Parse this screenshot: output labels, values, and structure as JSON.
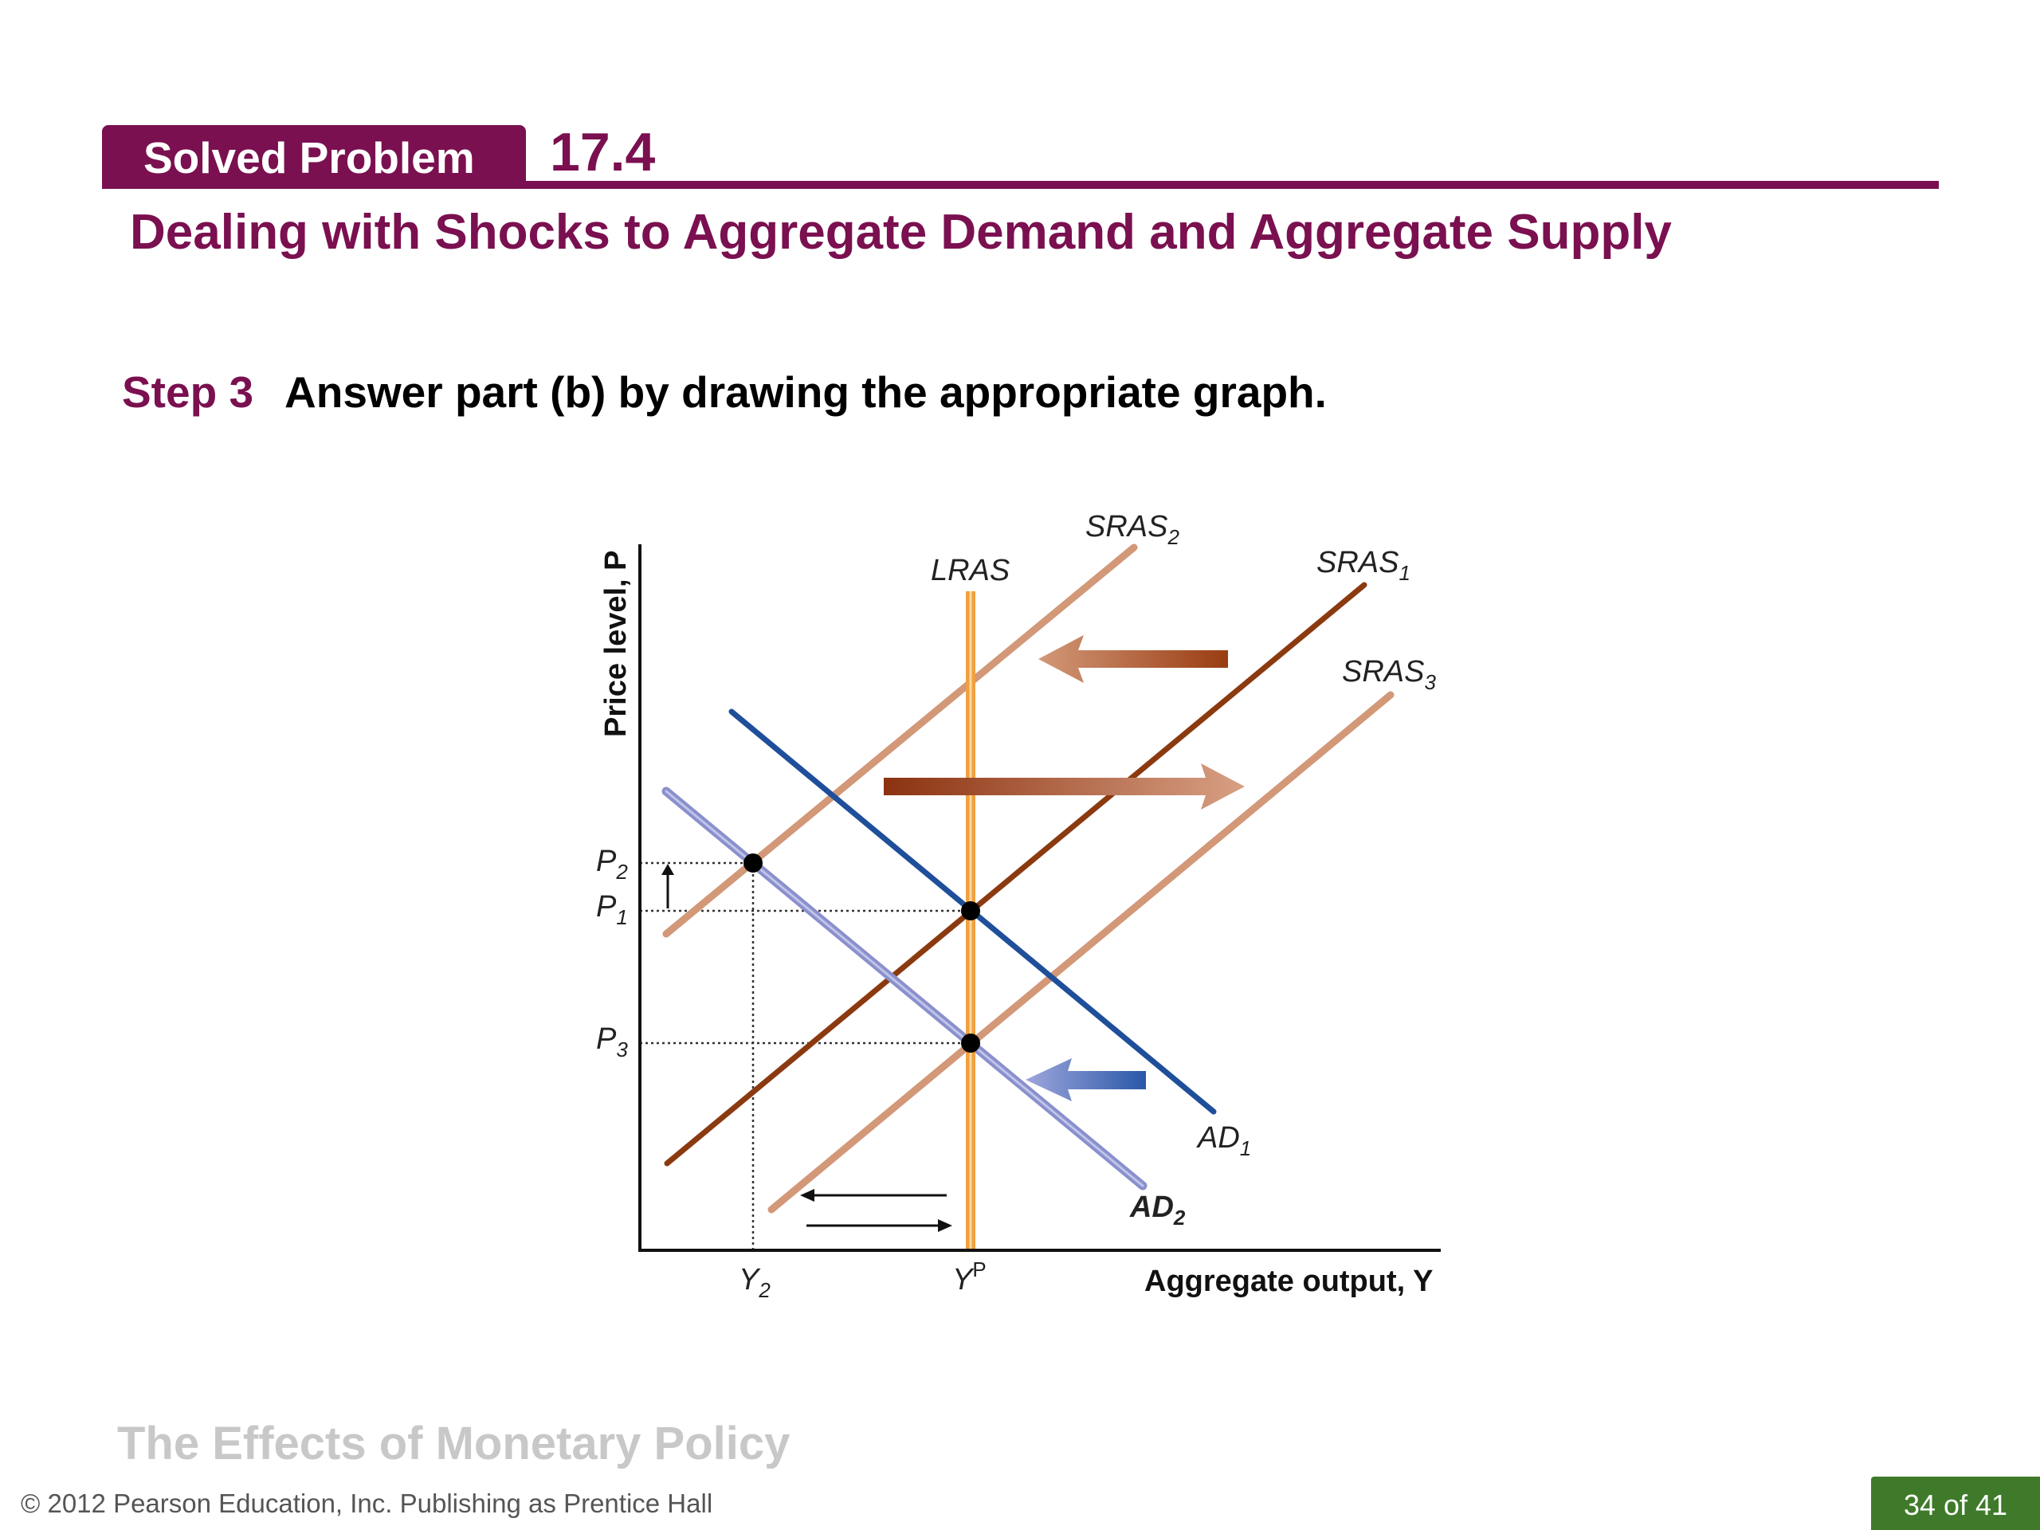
{
  "header": {
    "tab_label": "Solved Problem",
    "number": "17.4",
    "title": "Dealing with Shocks to Aggregate Demand and Aggregate Supply"
  },
  "step": {
    "label": "Step 3",
    "text": "Answer part (b) by drawing the appropriate graph."
  },
  "diagram": {
    "y_axis_label": "Price level, P",
    "x_axis_label": "Aggregate output, Y",
    "curves": {
      "lras": "LRAS",
      "sras1_base": "SRAS",
      "sras1_sub": "1",
      "sras2_base": "SRAS",
      "sras2_sub": "2",
      "sras3_base": "SRAS",
      "sras3_sub": "3",
      "ad1_base": "AD",
      "ad1_sub": "1",
      "ad2_base": "AD",
      "ad2_sub": "2"
    },
    "prices": {
      "p2_base": "P",
      "p2_sub": "2",
      "p1_base": "P",
      "p1_sub": "1",
      "p3_base": "P",
      "p3_sub": "3"
    },
    "outputs": {
      "y2_base": "Y",
      "y2_sub": "2",
      "yp_base": "Y",
      "yp_sup": "P"
    },
    "colors": {
      "lras": "#f0a040",
      "sras1": "#8b3a10",
      "sras_shifted": "#d29878",
      "ad1": "#1f4f9a",
      "ad2": "#8a90cc",
      "brand": "#7a1050"
    }
  },
  "footer": {
    "section_title": "The Effects of Monetary Policy",
    "copyright": "© 2012 Pearson Education, Inc. Publishing as Prentice Hall",
    "page": "34 of 41"
  }
}
